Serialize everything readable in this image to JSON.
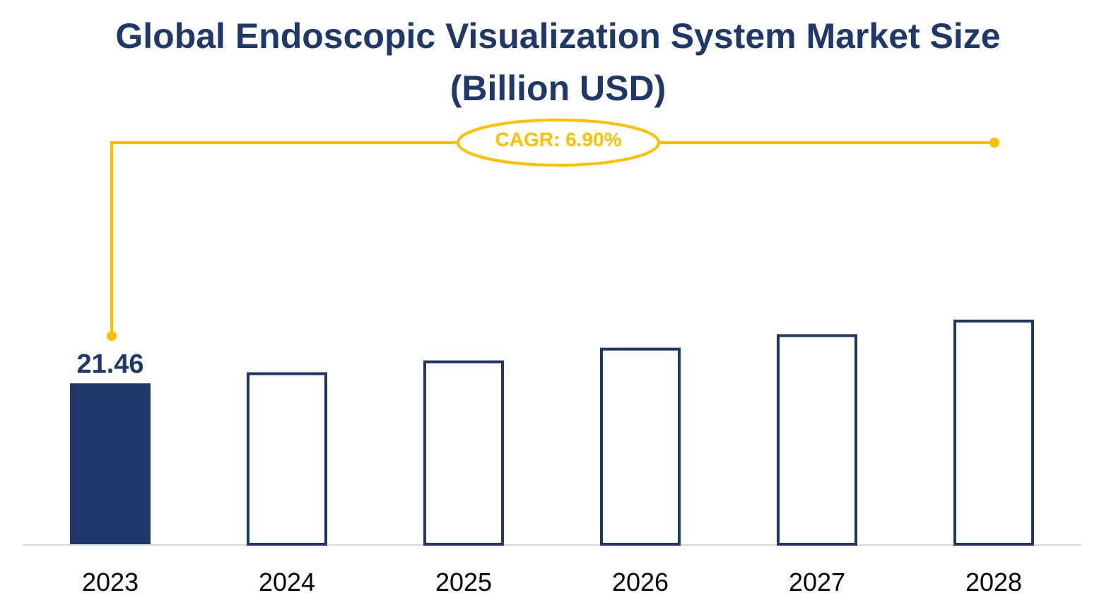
{
  "title_line1": "Global Endoscopic Visualization System Market Size",
  "title_line2": "(Billion USD)",
  "cagr_label": "CAGR: 6.90%",
  "colors": {
    "bar": "#1f3869",
    "accent": "#ffc000",
    "axis": "#d9d9d9"
  },
  "chart_data": {
    "type": "bar",
    "title": "Global Endoscopic Visualization System Market Size (Billion USD)",
    "categories": [
      "2023",
      "2024",
      "2025",
      "2026",
      "2027",
      "2028"
    ],
    "values": [
      21.46,
      22.94,
      24.52,
      26.21,
      28.02,
      29.96
    ],
    "data_labels": [
      "21.46",
      "",
      "",
      "",
      "",
      ""
    ],
    "annotation": "CAGR: 6.90%",
    "xlabel": "",
    "ylabel": "",
    "grid": false,
    "legend": "none"
  }
}
